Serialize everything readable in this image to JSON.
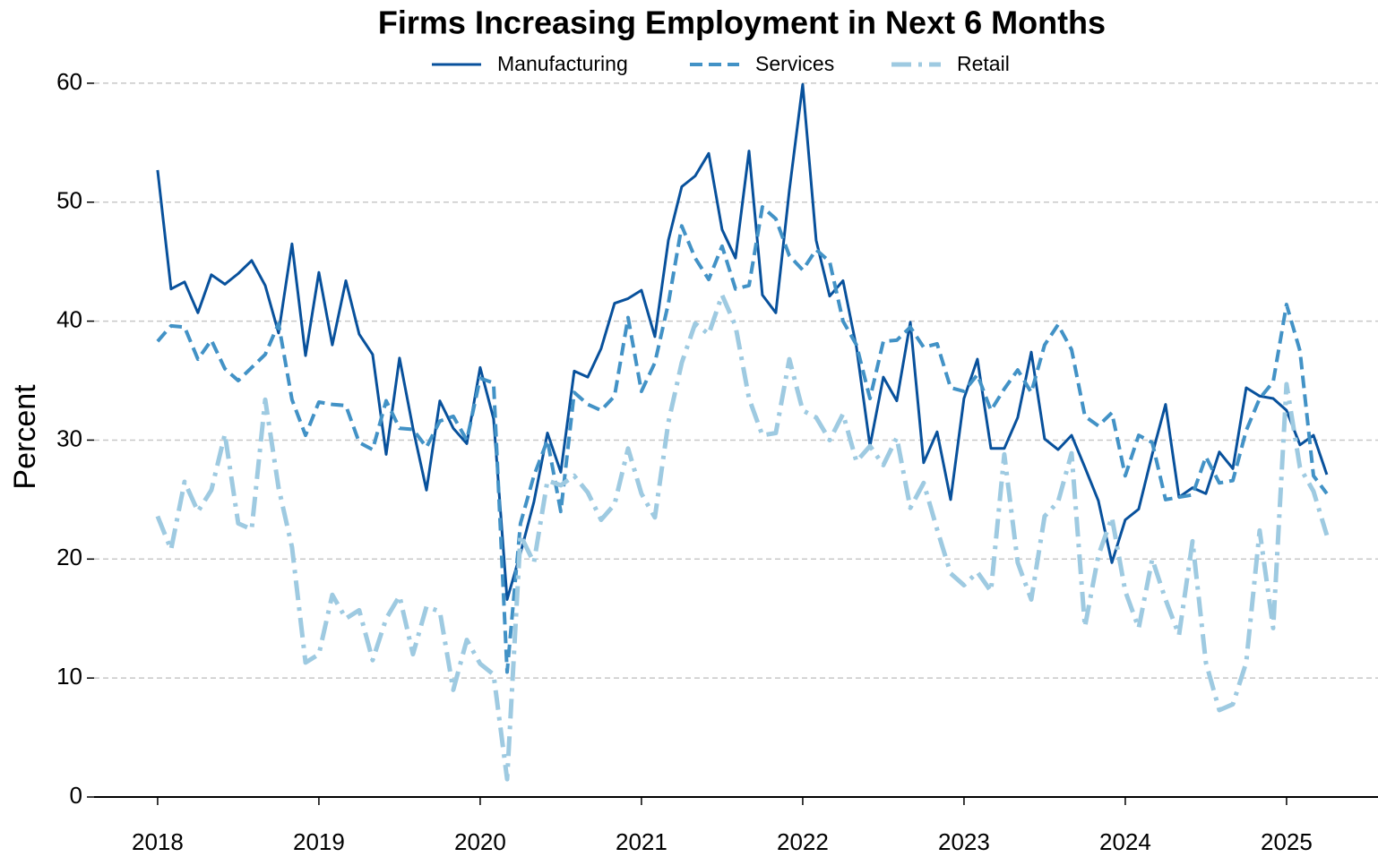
{
  "chart_data": {
    "type": "line",
    "title": "Firms Increasing Employment in Next 6 Months",
    "y_label": "Percent",
    "x": [
      2018,
      2018.083,
      2018.167,
      2018.25,
      2018.333,
      2018.417,
      2018.5,
      2018.583,
      2018.667,
      2018.75,
      2018.833,
      2018.917,
      2019,
      2019.083,
      2019.167,
      2019.25,
      2019.333,
      2019.417,
      2019.5,
      2019.583,
      2019.667,
      2019.75,
      2019.833,
      2019.917,
      2020,
      2020.083,
      2020.167,
      2020.25,
      2020.333,
      2020.417,
      2020.5,
      2020.583,
      2020.667,
      2020.75,
      2020.833,
      2020.917,
      2021,
      2021.083,
      2021.167,
      2021.25,
      2021.333,
      2021.417,
      2021.5,
      2021.583,
      2021.667,
      2021.75,
      2021.833,
      2021.917,
      2022,
      2022.083,
      2022.167,
      2022.25,
      2022.333,
      2022.417,
      2022.5,
      2022.583,
      2022.667,
      2022.75,
      2022.833,
      2022.917,
      2023,
      2023.083,
      2023.167,
      2023.25,
      2023.333,
      2023.417,
      2023.5,
      2023.583,
      2023.667,
      2023.75,
      2023.833,
      2023.917,
      2024,
      2024.083,
      2024.167,
      2024.25,
      2024.333,
      2024.417,
      2024.5,
      2024.583,
      2024.667,
      2024.75,
      2024.833,
      2024.917,
      2025,
      2025.083,
      2025.167,
      2025.25
    ],
    "series": [
      {
        "name": "Manufacturing",
        "color": "#08519c",
        "style": "solid",
        "values": [
          52.7,
          42.7,
          43.3,
          40.7,
          43.9,
          43.1,
          44.0,
          45.1,
          43.0,
          39.0,
          46.5,
          37.1,
          44.1,
          38.0,
          43.4,
          38.9,
          37.2,
          28.8,
          36.9,
          31.0,
          25.8,
          33.3,
          31.0,
          29.7,
          36.1,
          31.8,
          16.6,
          20.5,
          24.8,
          30.6,
          27.3,
          35.8,
          35.3,
          37.7,
          41.5,
          41.9,
          42.6,
          38.7,
          46.8,
          51.3,
          52.2,
          54.1,
          47.7,
          45.3,
          54.3,
          42.2,
          40.7,
          51.0,
          59.9,
          46.8,
          42.1,
          43.4,
          37.8,
          29.5,
          35.3,
          33.3,
          39.9,
          28.1,
          30.7,
          25.0,
          33.5,
          36.8,
          29.3,
          29.3,
          31.9,
          37.4,
          30.1,
          29.2,
          30.4,
          27.7,
          24.9,
          19.7,
          23.3,
          24.2,
          28.8,
          33.0,
          25.2,
          26.0,
          25.5,
          29.0,
          27.6,
          34.4,
          33.7,
          33.5,
          32.5,
          29.6,
          30.4,
          27.1
        ]
      },
      {
        "name": "Services",
        "color": "#4292c6",
        "style": "dashed",
        "values": [
          38.3,
          39.6,
          39.5,
          36.8,
          38.4,
          36.0,
          35.0,
          36.1,
          37.2,
          39.8,
          33.4,
          30.4,
          33.2,
          33.0,
          32.9,
          29.8,
          29.2,
          33.3,
          31.0,
          30.9,
          29.4,
          31.6,
          32.0,
          30.0,
          35.2,
          34.8,
          10.5,
          23.0,
          27.0,
          30.0,
          24.0,
          34.0,
          33.0,
          32.5,
          33.7,
          40.3,
          34.1,
          36.5,
          41.5,
          48.0,
          45.3,
          43.5,
          46.3,
          42.7,
          43.0,
          49.6,
          48.6,
          45.5,
          44.3,
          46.0,
          45.0,
          40.0,
          38.0,
          33.5,
          38.3,
          38.4,
          39.5,
          37.8,
          38.1,
          34.4,
          34.1,
          35.5,
          32.5,
          34.3,
          35.9,
          34.0,
          38.0,
          39.7,
          37.6,
          32.0,
          31.2,
          32.3,
          27.0,
          30.4,
          29.8,
          25.0,
          25.2,
          25.4,
          28.6,
          26.4,
          26.6,
          30.8,
          33.5,
          34.9,
          41.4,
          37.5,
          27.0,
          25.5
        ]
      },
      {
        "name": "Retail",
        "color": "#9ecae1",
        "style": "dashdot",
        "values": [
          23.6,
          20.8,
          26.5,
          24.0,
          25.8,
          30.5,
          23.0,
          22.5,
          33.4,
          26.0,
          21.0,
          11.3,
          12.0,
          17.0,
          15.0,
          15.7,
          11.5,
          15.0,
          16.9,
          12.0,
          16.0,
          15.6,
          9.0,
          13.2,
          11.2,
          10.3,
          1.5,
          22.0,
          19.7,
          26.6,
          26.2,
          27.0,
          25.6,
          23.3,
          24.6,
          29.3,
          25.5,
          23.5,
          31.5,
          36.5,
          39.8,
          38.9,
          42.2,
          39.6,
          33.5,
          30.4,
          30.6,
          36.8,
          32.5,
          31.9,
          30.0,
          32.2,
          28.2,
          29.5,
          27.9,
          30.2,
          24.3,
          26.4,
          22.5,
          18.8,
          17.8,
          18.9,
          17.3,
          28.8,
          19.7,
          16.6,
          23.6,
          24.8,
          28.9,
          14.3,
          20.3,
          23.5,
          17.3,
          14.2,
          20.0,
          16.6,
          13.6,
          21.5,
          11.3,
          7.3,
          7.8,
          11.3,
          22.4,
          14.2,
          34.7,
          27.7,
          25.7,
          22.0
        ]
      }
    ],
    "xlim": [
      2017.606,
      2025.567
    ],
    "xticks": [
      2018,
      2019,
      2020,
      2021,
      2022,
      2023,
      2024,
      2025
    ],
    "ylim": [
      0,
      61.5
    ],
    "yticks": [
      0,
      10,
      20,
      30,
      40,
      50,
      60
    ],
    "grid": true,
    "legend": "top"
  }
}
